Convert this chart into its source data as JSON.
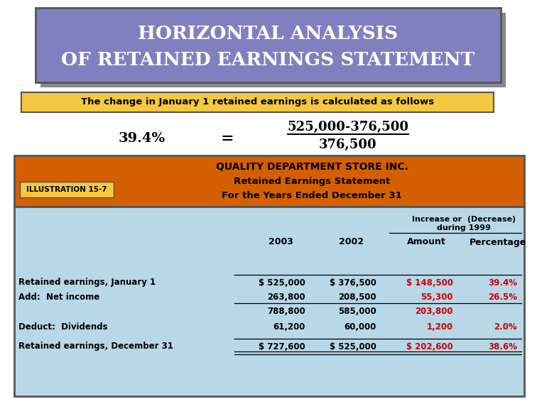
{
  "title_line1": "HORIZONTAL ANALYSIS",
  "title_line2": "OF RETAINED EARNINGS STATEMENT",
  "title_bg": "#8080c0",
  "title_text_color": "#ffffff",
  "subtitle_text": "The change in January 1 retained earnings is calculated as follows",
  "subtitle_bg": "#f5c842",
  "formula_left": "39.4%",
  "formula_eq": "=",
  "formula_num": "525,000-376,500",
  "formula_den": "376,500",
  "illus_label": "ILLUSTRATION 15-7",
  "illus_label_bg": "#f5c842",
  "table_header1": "QUALITY DEPARTMENT STORE INC.",
  "table_header2": "Retained Earnings Statement",
  "table_header3": "For the Years Ended December 31",
  "table_header_bg": "#d45f00",
  "table_body_bg": "#b8d8e8",
  "rows": [
    {
      "label": "Retained earnings, January 1",
      "v2003": "$ 525,000",
      "v2002": "$ 376,500",
      "amount": "$ 148,500",
      "pct": "39.4%",
      "line_above": true,
      "bold_label": true
    },
    {
      "label": "Add:  Net income",
      "v2003": "263,800",
      "v2002": "208,500",
      "amount": "55,300",
      "pct": "26.5%",
      "line_above": false,
      "bold_label": true
    },
    {
      "label": "",
      "v2003": "788,800",
      "v2002": "585,000",
      "amount": "203,800",
      "pct": "",
      "line_above": true,
      "bold_label": false
    },
    {
      "label": "Deduct:  Dividends",
      "v2003": "61,200",
      "v2002": "60,000",
      "amount": "1,200",
      "pct": "2.0%",
      "line_above": false,
      "bold_label": true
    },
    {
      "label": "Retained earnings, December 31",
      "v2003": "$ 727,600",
      "v2002": "$ 525,000",
      "amount": "$ 202,600",
      "pct": "38.6%",
      "line_above": true,
      "bold_label": true
    }
  ],
  "red_color": "#cc0000",
  "black_color": "#000000",
  "white_color": "#ffffff",
  "border_color": "#555555",
  "shadow_color": "#888888"
}
